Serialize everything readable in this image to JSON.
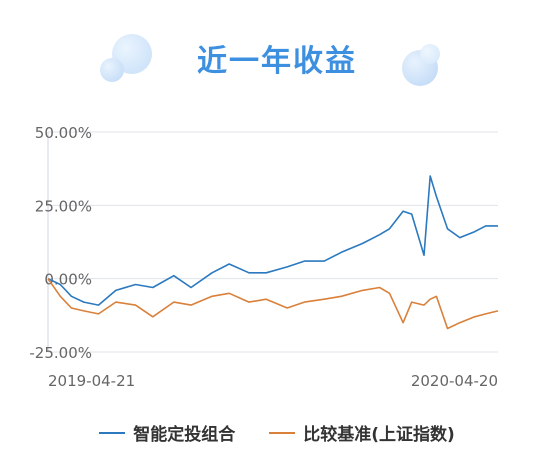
{
  "page": {
    "title": "近一年收益"
  },
  "colors": {
    "title": "#3d8fe0",
    "portfolio": "#2b79bf",
    "benchmark": "#d9803a",
    "grid": "#dfe3ea",
    "axis_text": "#666666"
  },
  "chart_data": {
    "type": "line",
    "title": "",
    "x_start": "2019-04-21",
    "x_end": "2020-04-20",
    "x_tick_labels": [
      "2019-04-21",
      "2020-04-20"
    ],
    "y_tick_labels": [
      "50.00%",
      "25.00%",
      "0.00%",
      "-25.00%"
    ],
    "y_ticks": [
      50,
      25,
      0,
      -25
    ],
    "ylim": [
      -25,
      50
    ],
    "ylabel": "",
    "grid": true,
    "legend_position": "bottom",
    "x": [
      "2019-04-21",
      "2019-05-01",
      "2019-05-10",
      "2019-05-20",
      "2019-06-01",
      "2019-06-15",
      "2019-07-01",
      "2019-07-15",
      "2019-08-01",
      "2019-08-15",
      "2019-09-01",
      "2019-09-15",
      "2019-10-01",
      "2019-10-15",
      "2019-11-01",
      "2019-11-15",
      "2019-12-01",
      "2019-12-15",
      "2020-01-01",
      "2020-01-15",
      "2020-01-23",
      "2020-02-03",
      "2020-02-10",
      "2020-02-20",
      "2020-02-25",
      "2020-03-01",
      "2020-03-10",
      "2020-03-20",
      "2020-04-01",
      "2020-04-10",
      "2020-04-20"
    ],
    "series": [
      {
        "name": "智能定投组合",
        "values": [
          0,
          -2,
          -6,
          -8,
          -9,
          -4,
          -2,
          -3,
          1,
          -3,
          2,
          5,
          2,
          2,
          4,
          6,
          6,
          9,
          12,
          15,
          17,
          23,
          22,
          8,
          35,
          28,
          17,
          14,
          16,
          18,
          18
        ]
      },
      {
        "name": "比较基准(上证指数)",
        "values": [
          0,
          -6,
          -10,
          -11,
          -12,
          -8,
          -9,
          -13,
          -8,
          -9,
          -6,
          -5,
          -8,
          -7,
          -10,
          -8,
          -7,
          -6,
          -4,
          -3,
          -5,
          -15,
          -8,
          -9,
          -7,
          -6,
          -17,
          -15,
          -13,
          -12,
          -11
        ]
      }
    ]
  }
}
